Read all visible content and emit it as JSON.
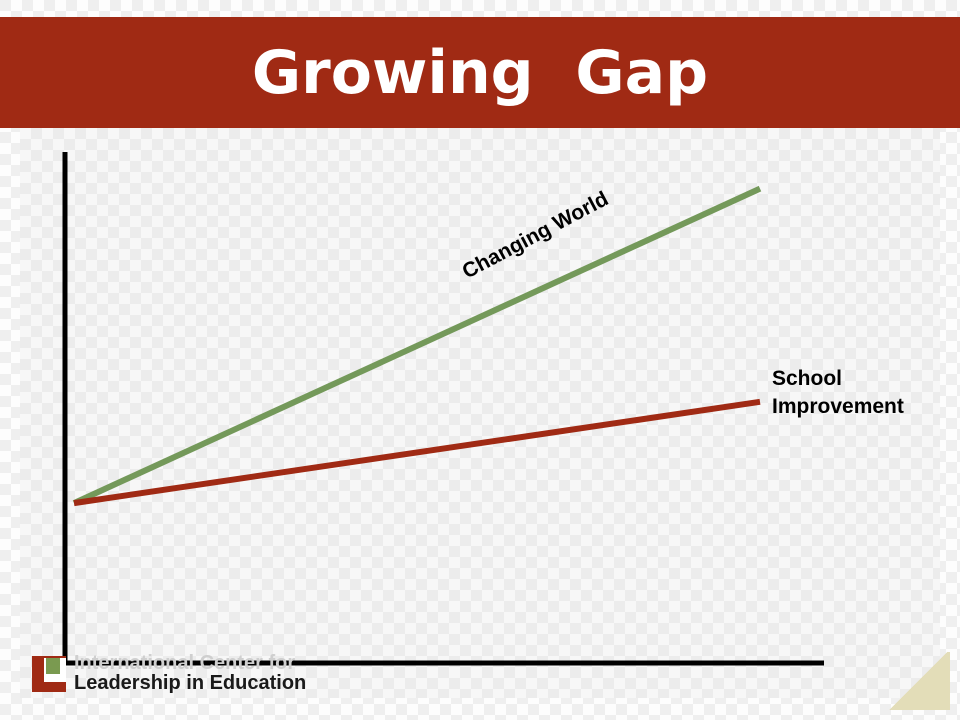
{
  "slide": {
    "title": "Growing  Gap",
    "logo_line1": "International Center for",
    "logo_line2": "Leadership in Education"
  },
  "colors": {
    "title_bar": "#a02a14",
    "changing_world": "#74995a",
    "school_improvement": "#a02a14"
  },
  "chart_data": {
    "type": "line",
    "title": "",
    "xlabel": "",
    "ylabel": "",
    "grid": false,
    "legend": "none",
    "x": [
      0,
      10
    ],
    "xlim": [
      0,
      10
    ],
    "ylim": [
      0,
      100
    ],
    "series": [
      {
        "name": "Changing World",
        "values": [
          30,
          89
        ]
      },
      {
        "name": "School Improvement",
        "values": [
          30,
          49
        ]
      }
    ],
    "labels": [
      "Changing World",
      "School",
      "Improvement"
    ]
  }
}
